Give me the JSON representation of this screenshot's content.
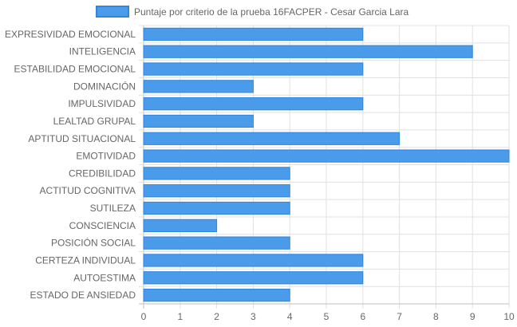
{
  "chart_data": {
    "type": "bar",
    "orientation": "horizontal",
    "title": "",
    "xlabel": "",
    "ylabel": "",
    "xlim": [
      0,
      10
    ],
    "x_ticks": [
      "0",
      "1",
      "2",
      "3",
      "4",
      "5",
      "6",
      "7",
      "8",
      "9",
      "10"
    ],
    "grid": true,
    "legend_position": "top",
    "categories": [
      "EXPRESIVIDAD EMOCIONAL",
      "INTELIGENCIA",
      "ESTABILIDAD EMOCIONAL",
      "DOMINACIÓN",
      "IMPULSIVIDAD",
      "LEALTAD GRUPAL",
      "APTITUD SITUACIONAL",
      "EMOTIVIDAD",
      "CREDIBILIDAD",
      "ACTITUD COGNITIVA",
      "SUTILEZA",
      "CONSCIENCIA",
      "POSICIÓN SOCIAL",
      "CERTEZA INDIVIDUAL",
      "AUTOESTIMA",
      "ESTADO DE ANSIEDAD"
    ],
    "series": [
      {
        "name": "Puntaje por criterio de la prueba 16FACPER - Cesar Garcia Lara",
        "values": [
          6,
          9,
          6,
          3,
          6,
          3,
          7,
          10,
          4,
          4,
          4,
          2,
          4,
          6,
          6,
          4
        ],
        "color": "#4a9bea",
        "border_color": "#2e86e0"
      }
    ]
  }
}
